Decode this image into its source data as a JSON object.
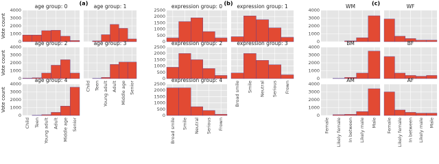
{
  "chart_data": [
    {
      "type": "bar",
      "label": "(a)",
      "y_label": "Vote count",
      "categories": [
        "Child",
        "Teen",
        "Young adult",
        "Adult",
        "Middle age",
        "Senior"
      ],
      "ylim": [
        0,
        4000
      ],
      "yticks": [
        0,
        1000,
        2000,
        3000,
        4000
      ],
      "color": "#e24a33",
      "grid": true,
      "panels": [
        {
          "title": "age group: 0",
          "values": [
            850,
            850,
            1400,
            1450,
            700,
            150
          ]
        },
        {
          "title": "age group: 1",
          "values": [
            0,
            100,
            900,
            2200,
            1700,
            350
          ]
        },
        {
          "title": "age group: 2",
          "values": [
            50,
            100,
            700,
            1700,
            2400,
            700
          ]
        },
        {
          "title": "age group: 3",
          "values": [
            0,
            30,
            150,
            1800,
            2100,
            2100
          ]
        },
        {
          "title": "age group: 4",
          "values": [
            0,
            30,
            100,
            400,
            1200,
            3600
          ]
        }
      ]
    },
    {
      "type": "bar",
      "label": "(b)",
      "categories": [
        "Broad smile",
        "Smile",
        "Neutral",
        "Serious",
        "Frown"
      ],
      "ylim": [
        0,
        2500
      ],
      "yticks": [
        0,
        500,
        1000,
        1500,
        2000,
        2500
      ],
      "color": "#e24a33",
      "grid": true,
      "panels": [
        {
          "title": "expression group: 0",
          "values": [
            300,
            1600,
            1900,
            800,
            300
          ]
        },
        {
          "title": "expression group: 1",
          "values": [
            400,
            2050,
            1750,
            1100,
            350
          ]
        },
        {
          "title": "expression group: 2",
          "values": [
            900,
            2000,
            1500,
            800,
            250
          ]
        },
        {
          "title": "expression group: 3",
          "values": [
            450,
            2000,
            1450,
            1100,
            300
          ]
        },
        {
          "title": "expression group: 4",
          "values": [
            2200,
            2200,
            700,
            400,
            100
          ]
        }
      ]
    },
    {
      "type": "bar",
      "label": "(c)",
      "categories": [
        "Female",
        "Likely female",
        "In between",
        "Likely male",
        "Male"
      ],
      "ylim": [
        0,
        4000
      ],
      "yticks": [
        0,
        1000,
        2000,
        3000,
        4000
      ],
      "color": "#e24a33",
      "grid": true,
      "panels": [
        {
          "title": "WM",
          "values": [
            0,
            0,
            100,
            500,
            3300
          ]
        },
        {
          "title": "WF",
          "values": [
            2900,
            700,
            400,
            200,
            200
          ]
        },
        {
          "title": "BM",
          "values": [
            0,
            30,
            150,
            700,
            3500
          ]
        },
        {
          "title": "BF",
          "values": [
            2800,
            700,
            400,
            300,
            400
          ]
        },
        {
          "title": "AM",
          "values": [
            0,
            100,
            150,
            500,
            3400
          ]
        },
        {
          "title": "AF",
          "values": [
            3000,
            700,
            400,
            300,
            300
          ]
        }
      ]
    }
  ]
}
